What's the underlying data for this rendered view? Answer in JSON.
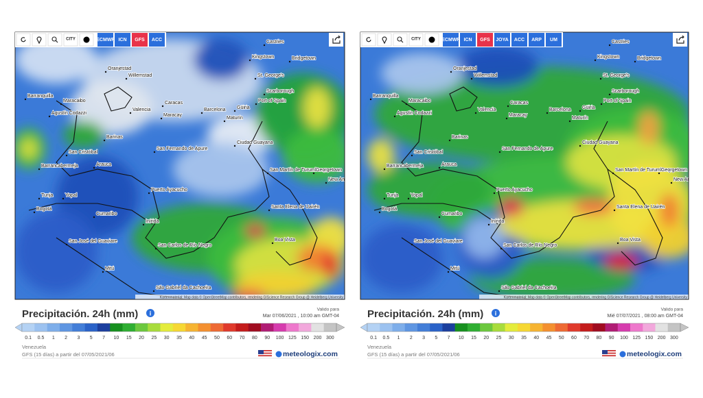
{
  "panels": [
    {
      "toolbar": {
        "city_icon_label": "CITY",
        "buttons": [
          "ECMWF",
          "ICN",
          "GFS",
          "ACC"
        ],
        "active_button": 2
      },
      "cities": [
        "Castries",
        "Kingstown",
        "Bridgetown",
        "Oranjestad",
        "Willemstad",
        "St. George's",
        "Barranquilla",
        "Scarborough",
        "Maracaibo",
        "Port of Spain",
        "Caracas",
        "Valencia",
        "Maracay",
        "Barcelona",
        "Güiria",
        "Maturín",
        "Agustín Codazzi",
        "Barinas",
        "San Cristóbal",
        "San Fernando de Apure",
        "Ciudad Guayana",
        "Barrancabermeja",
        "Arauca",
        "San Martín de Turumbang",
        "Georgetown",
        "New Amsterdam",
        "Puerto Ayacucho",
        "Yopal",
        "Tunja",
        "Bogotá",
        "Cumaribo",
        "Santa Elena de Uairén",
        "Inírida",
        "San José del Guaviare",
        "San Carlos de Río Negro",
        "Boa Vista",
        "Mitú",
        "São Gabriel da Cachoeira"
      ],
      "attribution": "Kartenmaterial: Map data © OpenStreetMap contributors, rendering GIScience Research Group @ Heidelberg University",
      "title": "Precipitación. 24h (mm)",
      "valid_label": "Valido para",
      "valid_time": "Mar 07/06/2021 , 10:00 am GMT-04",
      "legend": {
        "values": [
          0.1,
          0.5,
          1,
          2,
          3,
          5,
          7,
          10,
          15,
          20,
          25,
          30,
          35,
          40,
          45,
          50,
          60,
          70,
          80,
          90,
          100,
          125,
          150,
          200,
          300
        ],
        "colors": [
          "#b4d2f4",
          "#9cc2f0",
          "#7eaeea",
          "#5f96e2",
          "#437ed8",
          "#2a62c8",
          "#1c3f9e",
          "#17901f",
          "#2fae32",
          "#6cc83e",
          "#a8dc3c",
          "#e4ec3c",
          "#f6d834",
          "#f6b432",
          "#f49030",
          "#ee6a34",
          "#e03a2c",
          "#c41c1c",
          "#a00c20",
          "#b01c74",
          "#d63cae",
          "#ee78cc",
          "#f2a8dc",
          "#e2e2e2",
          "#c4c4c4"
        ]
      },
      "region": "Venezuela",
      "model_run": "GFS (15 días) a partir del 07/05/2021/06",
      "brand": "meteologix.com"
    },
    {
      "toolbar": {
        "city_icon_label": "CITY",
        "buttons": [
          "ECMWF",
          "ICN",
          "GFS",
          "JOYA",
          "ACC",
          "ARP",
          "UM"
        ],
        "active_button": 2
      },
      "cities": [
        "Castries",
        "Kingstown",
        "Bridgetown",
        "Oranjestad",
        "Willemstad",
        "St. George's",
        "Barranquilla",
        "Scarborough",
        "Maracaibo",
        "Port of Spain",
        "Caracas",
        "Valencia",
        "Maracay",
        "Barcelona",
        "Güiria",
        "Maturín",
        "Agustín Codazzi",
        "Barinas",
        "San Cristóbal",
        "San Fernando de Apure",
        "Ciudad Guayana",
        "Barrancabermeja",
        "Arauca",
        "San Martín de Turumbang",
        "Georgetown",
        "New Amsterdam",
        "Puerto Ayacucho",
        "Yopal",
        "Tunja",
        "Bogotá",
        "Cumaribo",
        "Santa Elena de Uairén",
        "Inírida",
        "San José del Guaviare",
        "San Carlos de Río Negro",
        "Boa Vista",
        "Mitú",
        "São Gabriel da Cachoeira"
      ],
      "attribution": "Kartenmaterial: Map data © OpenStreetMap contributors, rendering GIScience Research Group @ Heidelberg University",
      "title": "Precipitación. 24h (mm)",
      "valid_label": "Valido para",
      "valid_time": "Mié 07/07/2021 , 08:00 am GMT-04",
      "legend": {
        "values": [
          0.1,
          0.5,
          1,
          2,
          3,
          5,
          7,
          10,
          15,
          20,
          25,
          30,
          35,
          40,
          45,
          50,
          60,
          70,
          80,
          90,
          100,
          125,
          150,
          200,
          300
        ],
        "colors": [
          "#b4d2f4",
          "#9cc2f0",
          "#7eaeea",
          "#5f96e2",
          "#437ed8",
          "#2a62c8",
          "#1c3f9e",
          "#17901f",
          "#2fae32",
          "#6cc83e",
          "#a8dc3c",
          "#e4ec3c",
          "#f6d834",
          "#f6b432",
          "#f49030",
          "#ee6a34",
          "#e03a2c",
          "#c41c1c",
          "#a00c20",
          "#b01c74",
          "#d63cae",
          "#ee78cc",
          "#f2a8dc",
          "#e2e2e2",
          "#c4c4c4"
        ]
      },
      "region": "Venezuela",
      "model_run": "GFS (15 días) a partir del 07/05/2021/06",
      "brand": "meteologix.com"
    }
  ]
}
